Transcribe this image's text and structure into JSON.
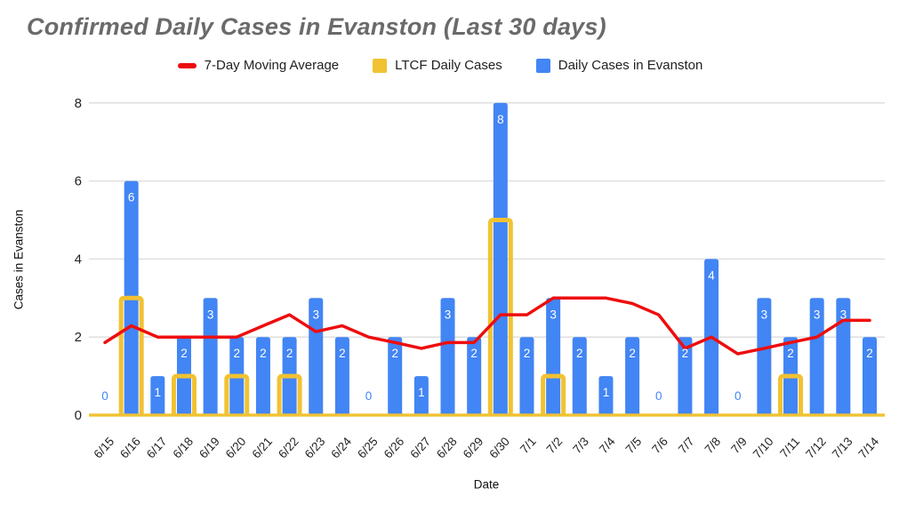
{
  "title": "Confirmed Daily Cases in Evanston (Last 30 days)",
  "legend": [
    {
      "label": "7-Day Moving Average",
      "type": "line",
      "color": "#ee0d0d"
    },
    {
      "label": "LTCF Daily Cases",
      "type": "square",
      "color": "#f1c232"
    },
    {
      "label": "Daily Cases in Evanston",
      "type": "square",
      "color": "#4285f4"
    }
  ],
  "chart_data": {
    "type": "bar",
    "title": "Confirmed Daily Cases in Evanston (Last 30 days)",
    "xlabel": "Date",
    "ylabel": "Cases in Evanston",
    "ylim": [
      0,
      8
    ],
    "y_ticks": [
      0,
      2,
      4,
      6,
      8
    ],
    "grid": true,
    "legend_position": "top",
    "gridline_color": "#dcdcdc",
    "tick_color": "#222222",
    "bar_label_color": "#ffffff",
    "zero_label_color": "#4285f4",
    "categories": [
      "6/15",
      "6/16",
      "6/17",
      "6/18",
      "6/19",
      "6/20",
      "6/21",
      "6/22",
      "6/23",
      "6/24",
      "6/25",
      "6/26",
      "6/27",
      "6/28",
      "6/29",
      "6/30",
      "7/1",
      "7/2",
      "7/3",
      "7/4",
      "7/5",
      "7/6",
      "7/7",
      "7/8",
      "7/9",
      "7/10",
      "7/11",
      "7/12",
      "7/13",
      "7/14"
    ],
    "series": [
      {
        "name": "Daily Cases in Evanston",
        "type": "bar",
        "color": "#4285f4",
        "values": [
          0,
          6,
          1,
          2,
          3,
          2,
          2,
          2,
          3,
          2,
          0,
          2,
          1,
          3,
          2,
          8,
          2,
          3,
          2,
          1,
          2,
          0,
          2,
          4,
          0,
          3,
          2,
          3,
          3,
          2
        ],
        "data_labels": true
      },
      {
        "name": "LTCF Daily Cases",
        "type": "bar-outline",
        "color": "#f1c232",
        "values": [
          0,
          3,
          0,
          1,
          0,
          1,
          0,
          1,
          0,
          0,
          0,
          0,
          0,
          0,
          0,
          5,
          0,
          1,
          0,
          0,
          0,
          0,
          0,
          0,
          0,
          0,
          1,
          0,
          0,
          0
        ]
      },
      {
        "name": "7-Day Moving Average",
        "type": "line",
        "color": "#ee0d0d",
        "values": [
          1.86,
          2.29,
          2,
          2,
          2,
          2,
          2.29,
          2.57,
          2.14,
          2.29,
          2,
          1.86,
          1.71,
          1.86,
          1.86,
          2.57,
          2.57,
          3,
          3,
          3,
          2.86,
          2.57,
          1.71,
          2,
          1.57,
          1.71,
          1.86,
          2,
          2.43,
          2.43
        ]
      }
    ]
  }
}
